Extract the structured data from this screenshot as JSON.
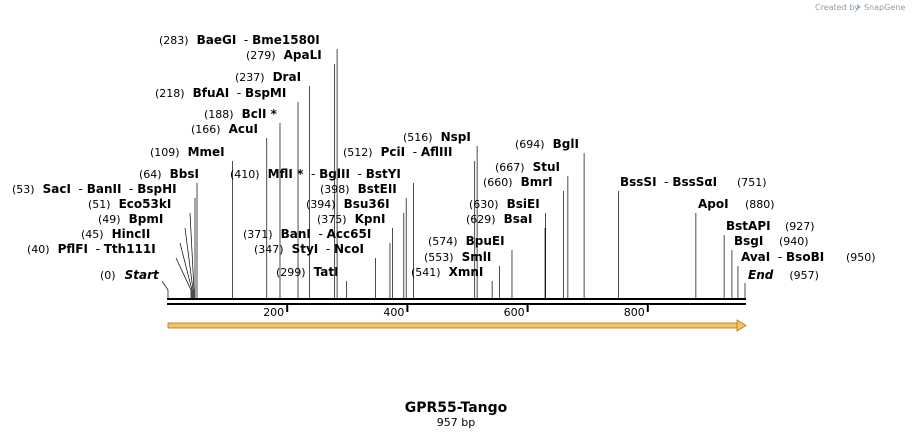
{
  "watermark": {
    "text": "Created by",
    "brand": "SnapGene"
  },
  "map": {
    "name": "GPR55-Tango",
    "length_label": "957 bp",
    "length": 957,
    "ticks": [
      {
        "value": 200,
        "label": "200"
      },
      {
        "value": 400,
        "label": "400"
      },
      {
        "value": 600,
        "label": "600"
      },
      {
        "value": 800,
        "label": "800"
      }
    ],
    "feature_color": "#f5c36b",
    "feature_outline": "#b07a10",
    "start": {
      "pos": 0,
      "pos_label": "(0)",
      "name": "Start"
    },
    "end": {
      "pos": 957,
      "pos_label": "(957)",
      "name": "End"
    }
  },
  "sites": [
    {
      "id": "pflfi",
      "pos": 40,
      "pos_label": "(40)",
      "names": [
        "PflFI",
        "Tth111I"
      ]
    },
    {
      "id": "hincii",
      "pos": 45,
      "pos_label": "(45)",
      "names": [
        "HincII"
      ]
    },
    {
      "id": "bpmi",
      "pos": 49,
      "pos_label": "(49)",
      "names": [
        "BpmI"
      ]
    },
    {
      "id": "eco53ki",
      "pos": 51,
      "pos_label": "(51)",
      "names": [
        "Eco53kI"
      ]
    },
    {
      "id": "saci",
      "pos": 53,
      "pos_label": "(53)",
      "names": [
        "SacI",
        "BanII",
        "BspHI"
      ]
    },
    {
      "id": "bbsi",
      "pos": 64,
      "pos_label": "(64)",
      "names": [
        "BbsI"
      ]
    },
    {
      "id": "mmei",
      "pos": 109,
      "pos_label": "(109)",
      "names": [
        "MmeI"
      ]
    },
    {
      "id": "acui",
      "pos": 166,
      "pos_label": "(166)",
      "names": [
        "AcuI"
      ]
    },
    {
      "id": "bcli",
      "pos": 188,
      "pos_label": "(188)",
      "names": [
        "BclI *"
      ]
    },
    {
      "id": "bfuai",
      "pos": 218,
      "pos_label": "(218)",
      "names": [
        "BfuAI",
        "BspMI"
      ]
    },
    {
      "id": "drai",
      "pos": 237,
      "pos_label": "(237)",
      "names": [
        "DraI"
      ]
    },
    {
      "id": "apali",
      "pos": 279,
      "pos_label": "(279)",
      "names": [
        "ApaLI"
      ]
    },
    {
      "id": "baegi",
      "pos": 283,
      "pos_label": "(283)",
      "names": [
        "BaeGI",
        "Bme1580I"
      ]
    },
    {
      "id": "tati",
      "pos": 299,
      "pos_label": "(299)",
      "names": [
        "TatI"
      ]
    },
    {
      "id": "styi",
      "pos": 347,
      "pos_label": "(347)",
      "names": [
        "StyI",
        "NcoI"
      ]
    },
    {
      "id": "bani",
      "pos": 371,
      "pos_label": "(371)",
      "names": [
        "BanI",
        "Acc65I"
      ]
    },
    {
      "id": "kpni",
      "pos": 375,
      "pos_label": "(375)",
      "names": [
        "KpnI"
      ]
    },
    {
      "id": "bsu36i",
      "pos": 394,
      "pos_label": "(394)",
      "names": [
        "Bsu36I"
      ]
    },
    {
      "id": "bsteii",
      "pos": 398,
      "pos_label": "(398)",
      "names": [
        "BstEII"
      ]
    },
    {
      "id": "mfli",
      "pos": 410,
      "pos_label": "(410)",
      "names": [
        "MflI *",
        "BglII",
        "BstYI"
      ]
    },
    {
      "id": "pcli",
      "pos": 512,
      "pos_label": "(512)",
      "names": [
        "PciI",
        "AflIII"
      ]
    },
    {
      "id": "nspi",
      "pos": 516,
      "pos_label": "(516)",
      "names": [
        "NspI"
      ]
    },
    {
      "id": "xmni",
      "pos": 541,
      "pos_label": "(541)",
      "names": [
        "XmnI"
      ]
    },
    {
      "id": "smli",
      "pos": 553,
      "pos_label": "(553)",
      "names": [
        "SmlI"
      ]
    },
    {
      "id": "bpuei",
      "pos": 574,
      "pos_label": "(574)",
      "names": [
        "BpuEI"
      ]
    },
    {
      "id": "bsai",
      "pos": 629,
      "pos_label": "(629)",
      "names": [
        "BsaI"
      ]
    },
    {
      "id": "bsiei",
      "pos": 630,
      "pos_label": "(630)",
      "names": [
        "BsiEI"
      ]
    },
    {
      "id": "bmri",
      "pos": 660,
      "pos_label": "(660)",
      "names": [
        "BmrI"
      ]
    },
    {
      "id": "stui",
      "pos": 667,
      "pos_label": "(667)",
      "names": [
        "StuI"
      ]
    },
    {
      "id": "bgli",
      "pos": 694,
      "pos_label": "(694)",
      "names": [
        "BglI"
      ]
    },
    {
      "id": "bsssi",
      "pos": 751,
      "pos_label": "(751)",
      "names": [
        "BssSI",
        "BssSαI"
      ]
    },
    {
      "id": "apoi",
      "pos": 880,
      "pos_label": "(880)",
      "names": [
        "ApoI"
      ]
    },
    {
      "id": "bstapi",
      "pos": 927,
      "pos_label": "(927)",
      "names": [
        "BstAPI"
      ]
    },
    {
      "id": "bsgi",
      "pos": 940,
      "pos_label": "(940)",
      "names": [
        "BsgI"
      ]
    },
    {
      "id": "avai",
      "pos": 950,
      "pos_label": "(950)",
      "names": [
        "AvaI",
        "BsoBI"
      ]
    }
  ]
}
